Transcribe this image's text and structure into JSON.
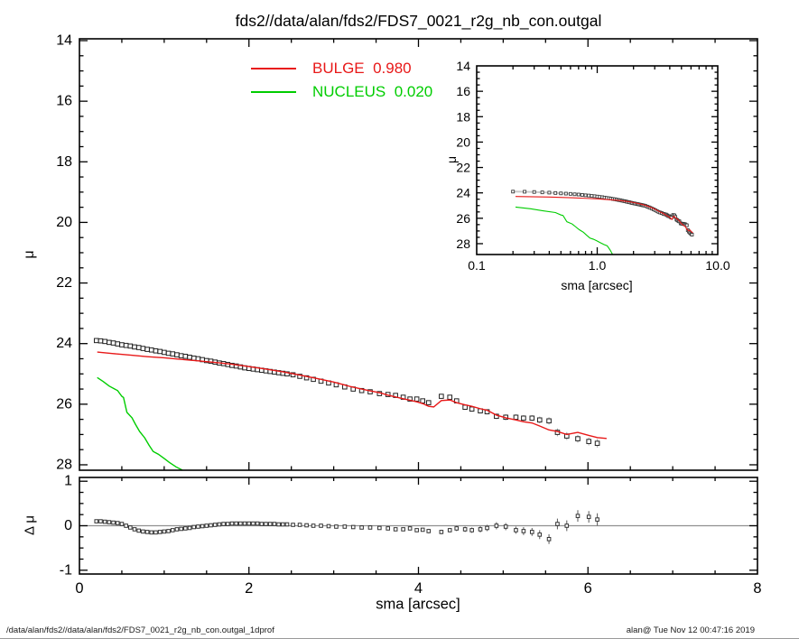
{
  "title": "fds2//data/alan/fds2/FDS7_0021_r2g_nb_con.outgal",
  "legend": {
    "items": [
      {
        "name": "BULGE",
        "value": "0.980",
        "color": "#e81818"
      },
      {
        "name": "NUCLEUS",
        "value": "0.020",
        "color": "#00cd00"
      }
    ]
  },
  "axes": {
    "x_label": "sma [arcsec]",
    "y_label_main": "μ",
    "y_label_residual": "Δ μ",
    "inset_x_label": "sma [arcsec]",
    "inset_y_label": "μ"
  },
  "footer": {
    "left": "/data/alan/fds2//data/alan/fds2/FDS7_0021_r2g_nb_con.outgal_1dprof",
    "right": "alan@  Tue Nov 12 00:47:16 2019"
  },
  "chart_data": {
    "type": "scatter",
    "panels": [
      {
        "id": "main",
        "xlabel": "sma [arcsec]",
        "ylabel": "μ",
        "xlim": [
          0,
          8
        ],
        "ylim": [
          28.2,
          13.9
        ],
        "xticks": [
          0,
          2,
          4,
          6,
          8
        ],
        "xtick_labels": [
          "0",
          "2",
          "4",
          "6",
          "8"
        ],
        "yticks": [
          14,
          16,
          18,
          20,
          22,
          24,
          26,
          28
        ],
        "ytick_labels": [
          "14",
          "16",
          "18",
          "20",
          "22",
          "24",
          "26",
          "28"
        ],
        "x_minor_step": 0.5,
        "y_minor_step": 0.5,
        "series": [
          "observed",
          "bulge",
          "nucleus"
        ]
      },
      {
        "id": "inset",
        "xlabel": "sma [arcsec]",
        "ylabel": "μ",
        "xscale": "log",
        "xlim": [
          0.1,
          10
        ],
        "ylim": [
          28.9,
          14
        ],
        "xticks": [
          0.1,
          1,
          10
        ],
        "xtick_labels": [
          "0.1",
          "1.0",
          "10.0"
        ],
        "yticks": [
          14,
          16,
          18,
          20,
          22,
          24,
          26,
          28
        ],
        "ytick_labels": [
          "14",
          "16",
          "18",
          "20",
          "22",
          "24",
          "26",
          "28"
        ],
        "series": [
          "observed",
          "bulge",
          "nucleus"
        ]
      },
      {
        "id": "residual",
        "xlabel": "sma [arcsec]",
        "ylabel": "Δ μ",
        "xlim": [
          0,
          8
        ],
        "ylim": [
          -1.09,
          1.09
        ],
        "xticks": [
          0,
          2,
          4,
          6,
          8
        ],
        "yticks": [
          1,
          0,
          -1
        ],
        "ytick_labels": [
          "1",
          "0",
          "-1"
        ],
        "y_minor_step": 0.25,
        "zero_line": true,
        "series": [
          "residual"
        ]
      }
    ],
    "series": {
      "observed": {
        "label": "data",
        "marker": "open-square",
        "color": "#222222",
        "band_color": "#c9c9c9",
        "bar_color": "#aaaaaa",
        "points": [
          [
            0.2,
            23.9,
            0.07
          ],
          [
            0.25,
            23.91,
            0.07
          ],
          [
            0.3,
            23.93,
            0.07
          ],
          [
            0.35,
            23.96,
            0.07
          ],
          [
            0.4,
            23.98,
            0.07
          ],
          [
            0.45,
            24.01,
            0.07
          ],
          [
            0.5,
            24.04,
            0.07
          ],
          [
            0.55,
            24.06,
            0.07
          ],
          [
            0.6,
            24.08,
            0.07
          ],
          [
            0.65,
            24.11,
            0.07
          ],
          [
            0.7,
            24.13,
            0.07
          ],
          [
            0.75,
            24.16,
            0.07
          ],
          [
            0.8,
            24.19,
            0.07
          ],
          [
            0.85,
            24.21,
            0.07
          ],
          [
            0.9,
            24.24,
            0.07
          ],
          [
            0.95,
            24.26,
            0.07
          ],
          [
            1.0,
            24.29,
            0.06
          ],
          [
            1.05,
            24.32,
            0.06
          ],
          [
            1.1,
            24.34,
            0.06
          ],
          [
            1.15,
            24.37,
            0.06
          ],
          [
            1.2,
            24.4,
            0.06
          ],
          [
            1.25,
            24.42,
            0.06
          ],
          [
            1.3,
            24.45,
            0.06
          ],
          [
            1.35,
            24.48,
            0.06
          ],
          [
            1.4,
            24.5,
            0.06
          ],
          [
            1.45,
            24.53,
            0.06
          ],
          [
            1.5,
            24.56,
            0.06
          ],
          [
            1.55,
            24.58,
            0.06
          ],
          [
            1.6,
            24.61,
            0.06
          ],
          [
            1.65,
            24.64,
            0.06
          ],
          [
            1.7,
            24.66,
            0.06
          ],
          [
            1.75,
            24.69,
            0.06
          ],
          [
            1.8,
            24.72,
            0.06
          ],
          [
            1.85,
            24.74,
            0.06
          ],
          [
            1.9,
            24.77,
            0.06
          ],
          [
            1.95,
            24.8,
            0.06
          ],
          [
            2.0,
            24.82,
            0.05
          ],
          [
            2.05,
            24.84,
            0.05
          ],
          [
            2.1,
            24.86,
            0.05
          ],
          [
            2.15,
            24.88,
            0.05
          ],
          [
            2.2,
            24.9,
            0.05
          ],
          [
            2.25,
            24.92,
            0.05
          ],
          [
            2.3,
            24.94,
            0.05
          ],
          [
            2.35,
            24.96,
            0.05
          ],
          [
            2.4,
            24.98,
            0.05
          ],
          [
            2.45,
            25.0,
            0.05
          ],
          [
            2.52,
            25.03,
            0.05
          ],
          [
            2.6,
            25.08,
            0.05
          ],
          [
            2.68,
            25.13,
            0.05
          ],
          [
            2.76,
            25.18,
            0.05
          ],
          [
            2.85,
            25.24,
            0.05
          ],
          [
            2.94,
            25.3,
            0.05
          ],
          [
            3.03,
            25.36,
            0.05
          ],
          [
            3.13,
            25.43,
            0.05
          ],
          [
            3.23,
            25.5,
            0.05
          ],
          [
            3.33,
            25.55,
            0.05
          ],
          [
            3.43,
            25.59,
            0.05
          ],
          [
            3.54,
            25.65,
            0.06
          ],
          [
            3.64,
            25.68,
            0.06
          ],
          [
            3.73,
            25.71,
            0.06
          ],
          [
            3.82,
            25.77,
            0.06
          ],
          [
            3.9,
            25.83,
            0.06
          ],
          [
            3.98,
            25.83,
            0.06
          ],
          [
            4.05,
            25.89,
            0.06
          ],
          [
            4.12,
            25.95,
            0.06
          ],
          [
            4.27,
            25.74,
            0.08
          ],
          [
            4.37,
            25.77,
            0.08
          ],
          [
            4.45,
            25.89,
            0.08
          ],
          [
            4.55,
            26.1,
            0.08
          ],
          [
            4.63,
            26.16,
            0.08
          ],
          [
            4.73,
            26.22,
            0.08
          ],
          [
            4.81,
            26.25,
            0.08
          ],
          [
            4.92,
            26.4,
            0.09
          ],
          [
            5.03,
            26.43,
            0.1
          ],
          [
            5.15,
            26.43,
            0.1
          ],
          [
            5.24,
            26.46,
            0.1
          ],
          [
            5.34,
            26.46,
            0.1
          ],
          [
            5.43,
            26.52,
            0.11
          ],
          [
            5.54,
            26.55,
            0.12
          ],
          [
            5.64,
            26.93,
            0.13
          ],
          [
            5.75,
            27.05,
            0.13
          ],
          [
            5.88,
            27.14,
            0.13
          ],
          [
            6.01,
            27.23,
            0.13
          ],
          [
            6.11,
            27.29,
            0.14
          ]
        ]
      },
      "bulge": {
        "label": "BULGE",
        "weight": 0.98,
        "color": "#e81818",
        "points": [
          [
            0.21,
            24.28
          ],
          [
            0.4,
            24.33
          ],
          [
            0.6,
            24.38
          ],
          [
            0.8,
            24.43
          ],
          [
            1.0,
            24.47
          ],
          [
            1.2,
            24.52
          ],
          [
            1.4,
            24.57
          ],
          [
            1.6,
            24.62
          ],
          [
            1.8,
            24.68
          ],
          [
            2.0,
            24.76
          ],
          [
            2.2,
            24.84
          ],
          [
            2.4,
            24.93
          ],
          [
            2.6,
            25.04
          ],
          [
            2.8,
            25.15
          ],
          [
            3.0,
            25.27
          ],
          [
            3.2,
            25.42
          ],
          [
            3.33,
            25.5
          ],
          [
            3.43,
            25.56
          ],
          [
            3.54,
            25.62
          ],
          [
            3.64,
            25.7
          ],
          [
            3.73,
            25.76
          ],
          [
            3.82,
            25.82
          ],
          [
            3.9,
            25.87
          ],
          [
            3.98,
            25.92
          ],
          [
            4.05,
            25.98
          ],
          [
            4.12,
            26.07
          ],
          [
            4.18,
            26.09
          ],
          [
            4.27,
            25.88
          ],
          [
            4.37,
            25.86
          ],
          [
            4.45,
            25.95
          ],
          [
            4.55,
            26.02
          ],
          [
            4.63,
            26.07
          ],
          [
            4.73,
            26.15
          ],
          [
            4.81,
            26.2
          ],
          [
            4.92,
            26.36
          ],
          [
            5.03,
            26.45
          ],
          [
            5.15,
            26.52
          ],
          [
            5.24,
            26.58
          ],
          [
            5.34,
            26.62
          ],
          [
            5.43,
            26.72
          ],
          [
            5.54,
            26.85
          ],
          [
            5.64,
            26.9
          ],
          [
            5.75,
            27.0
          ],
          [
            5.88,
            26.93
          ],
          [
            6.01,
            27.03
          ],
          [
            6.11,
            27.1
          ],
          [
            6.22,
            27.13
          ]
        ]
      },
      "nucleus": {
        "label": "NUCLEUS",
        "weight": 0.02,
        "color": "#00cd00",
        "points": [
          [
            0.21,
            25.12
          ],
          [
            0.28,
            25.25
          ],
          [
            0.35,
            25.4
          ],
          [
            0.45,
            25.55
          ],
          [
            0.5,
            25.74
          ],
          [
            0.52,
            25.78
          ],
          [
            0.56,
            26.27
          ],
          [
            0.62,
            26.45
          ],
          [
            0.66,
            26.66
          ],
          [
            0.71,
            26.9
          ],
          [
            0.77,
            27.11
          ],
          [
            0.82,
            27.35
          ],
          [
            0.87,
            27.56
          ],
          [
            0.93,
            27.65
          ],
          [
            0.99,
            27.77
          ],
          [
            1.06,
            27.92
          ],
          [
            1.14,
            28.07
          ],
          [
            1.21,
            28.17
          ],
          [
            1.28,
            28.5
          ],
          [
            1.35,
            28.9
          ]
        ]
      },
      "residual": {
        "label": "data - model",
        "marker": "open-square",
        "color": "#333333",
        "points": [
          [
            0.2,
            0.1
          ],
          [
            0.25,
            0.1
          ],
          [
            0.3,
            0.09
          ],
          [
            0.35,
            0.08
          ],
          [
            0.4,
            0.07
          ],
          [
            0.45,
            0.06
          ],
          [
            0.5,
            0.04
          ],
          [
            0.55,
            0.0
          ],
          [
            0.6,
            -0.04
          ],
          [
            0.65,
            -0.08
          ],
          [
            0.7,
            -0.11
          ],
          [
            0.75,
            -0.13
          ],
          [
            0.8,
            -0.14
          ],
          [
            0.85,
            -0.15
          ],
          [
            0.9,
            -0.15
          ],
          [
            0.95,
            -0.14
          ],
          [
            1.0,
            -0.13
          ],
          [
            1.05,
            -0.12
          ],
          [
            1.1,
            -0.1
          ],
          [
            1.15,
            -0.08
          ],
          [
            1.2,
            -0.07
          ],
          [
            1.25,
            -0.06
          ],
          [
            1.3,
            -0.05
          ],
          [
            1.35,
            -0.03
          ],
          [
            1.4,
            -0.02
          ],
          [
            1.45,
            -0.01
          ],
          [
            1.5,
            0.0
          ],
          [
            1.55,
            0.01
          ],
          [
            1.6,
            0.02
          ],
          [
            1.65,
            0.03
          ],
          [
            1.7,
            0.04
          ],
          [
            1.75,
            0.04
          ],
          [
            1.8,
            0.05
          ],
          [
            1.85,
            0.05
          ],
          [
            1.9,
            0.05
          ],
          [
            1.95,
            0.05
          ],
          [
            2.0,
            0.05
          ],
          [
            2.05,
            0.05
          ],
          [
            2.1,
            0.05
          ],
          [
            2.15,
            0.04
          ],
          [
            2.2,
            0.04
          ],
          [
            2.25,
            0.04
          ],
          [
            2.3,
            0.04
          ],
          [
            2.35,
            0.03
          ],
          [
            2.4,
            0.03
          ],
          [
            2.45,
            0.03
          ],
          [
            2.52,
            0.02
          ],
          [
            2.6,
            0.02
          ],
          [
            2.68,
            0.01
          ],
          [
            2.76,
            0.0
          ],
          [
            2.85,
            0.0
          ],
          [
            2.94,
            -0.01
          ],
          [
            3.03,
            -0.02
          ],
          [
            3.13,
            -0.02
          ],
          [
            3.23,
            -0.03
          ],
          [
            3.33,
            -0.04
          ],
          [
            3.43,
            -0.04
          ],
          [
            3.54,
            -0.05
          ],
          [
            3.64,
            -0.06
          ],
          [
            3.73,
            -0.08
          ],
          [
            3.82,
            -0.08
          ],
          [
            3.9,
            -0.06,
            0.04
          ],
          [
            3.98,
            -0.1,
            0.04
          ],
          [
            4.05,
            -0.09,
            0.04
          ],
          [
            4.12,
            -0.12,
            0.05
          ],
          [
            4.27,
            -0.14,
            0.05
          ],
          [
            4.37,
            -0.1,
            0.05
          ],
          [
            4.45,
            -0.06,
            0.06
          ],
          [
            4.55,
            -0.08,
            0.06
          ],
          [
            4.63,
            -0.1,
            0.06
          ],
          [
            4.73,
            -0.08,
            0.07
          ],
          [
            4.81,
            -0.05,
            0.07
          ],
          [
            4.92,
            0.0,
            0.08
          ],
          [
            5.03,
            -0.02,
            0.08
          ],
          [
            5.15,
            -0.1,
            0.08
          ],
          [
            5.24,
            -0.12,
            0.09
          ],
          [
            5.34,
            -0.14,
            0.09
          ],
          [
            5.43,
            -0.2,
            0.1
          ],
          [
            5.54,
            -0.3,
            0.11
          ],
          [
            5.64,
            0.04,
            0.12
          ],
          [
            5.75,
            0.0,
            0.12
          ],
          [
            5.88,
            0.22,
            0.13
          ],
          [
            6.01,
            0.2,
            0.13
          ],
          [
            6.11,
            0.14,
            0.14
          ]
        ]
      }
    }
  }
}
